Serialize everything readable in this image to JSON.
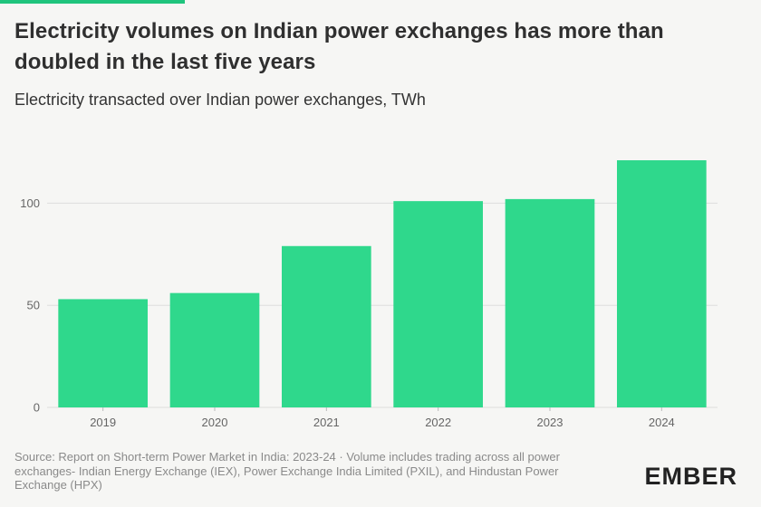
{
  "header": {
    "title": "Electricity volumes on Indian power exchanges has more than doubled in the last five years",
    "subtitle": "Electricity transacted over Indian power exchanges, TWh"
  },
  "footer": {
    "source": "Source: Report on Short-term Power Market in India: 2023-24 · Volume includes trading across all power exchanges- Indian Energy Exchange (IEX), Power Exchange India Limited (PXIL), and Hindustan Power Exchange (HPX)",
    "logo": "EMBER"
  },
  "colors": {
    "bar": "#2fd88c",
    "accent": "#1fc47d",
    "grid": "#dddddd",
    "background": "#f6f6f4"
  },
  "chart_data": {
    "type": "bar",
    "categories": [
      "2019",
      "2020",
      "2021",
      "2022",
      "2023",
      "2024"
    ],
    "values": [
      53,
      56,
      79,
      101,
      102,
      121
    ],
    "title": "Electricity volumes on Indian power exchanges has more than doubled in the last five years",
    "subtitle": "Electricity transacted over Indian power exchanges, TWh",
    "xlabel": "",
    "ylabel": "",
    "ylim": [
      0,
      125
    ],
    "yticks": [
      0,
      50,
      100
    ],
    "grid": true,
    "legend": "none"
  }
}
